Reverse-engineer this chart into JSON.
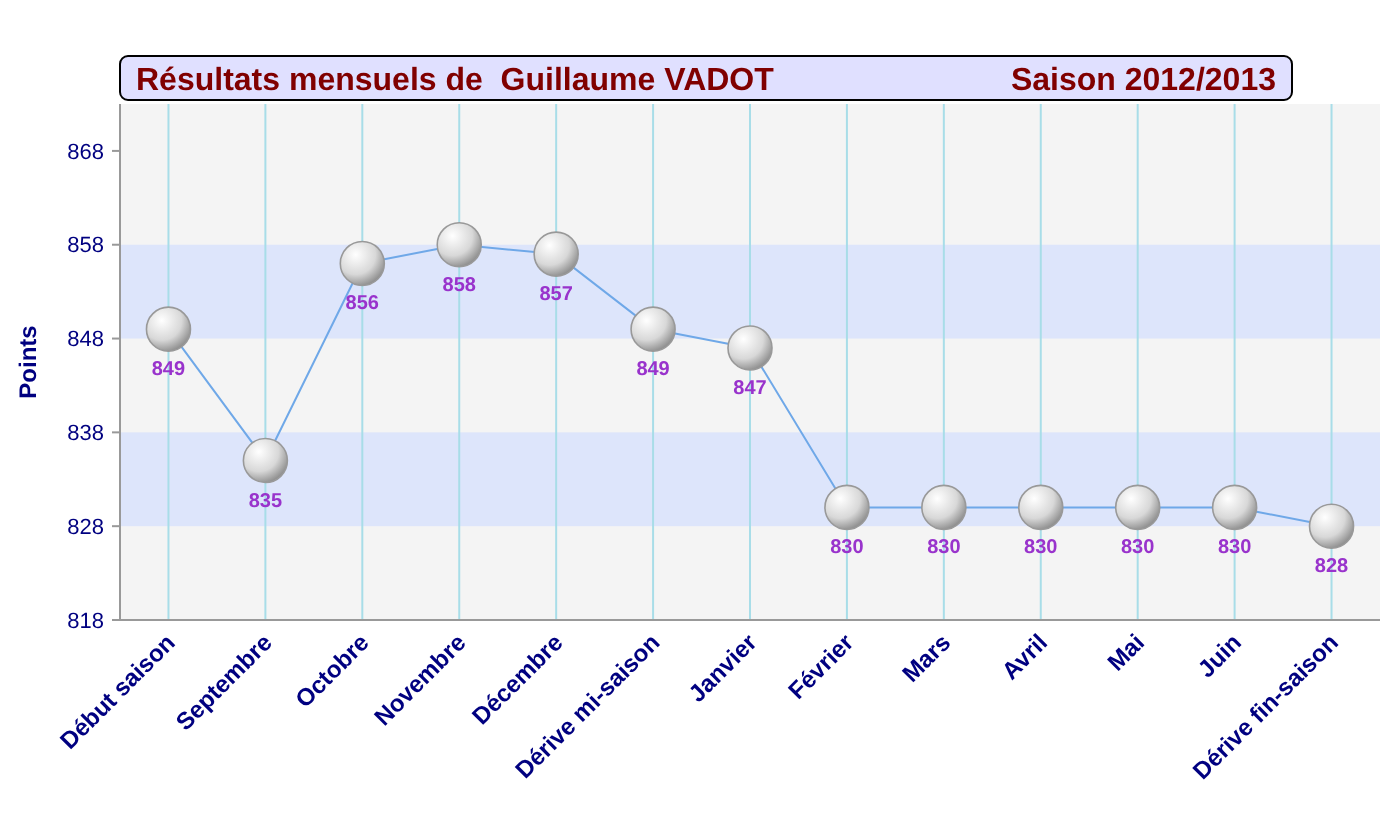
{
  "chart_data": {
    "type": "line",
    "title": "Résultats mensuels de  Guillaume VADOT",
    "subtitle": "Saison 2012/2013",
    "ylabel": "Points",
    "categories": [
      "Début saison",
      "Septembre",
      "Octobre",
      "Novembre",
      "Décembre",
      "Dérive mi-saison",
      "Janvier",
      "Février",
      "Mars",
      "Avril",
      "Mai",
      "Juin",
      "Dérive fin-saison"
    ],
    "series": [
      {
        "color": "#6fa8e8",
        "values": [
          849,
          835,
          856,
          858,
          857,
          849,
          847,
          830,
          830,
          830,
          830,
          830,
          828
        ],
        "value_labels": [
          "849",
          "835",
          "856",
          "858",
          "857",
          "849",
          "847",
          "830",
          "830",
          "830",
          "830",
          "830",
          "828"
        ]
      }
    ],
    "ylim": [
      818,
      873
    ],
    "yticks": [
      818,
      828,
      838,
      848,
      858,
      868
    ],
    "bands": [
      {
        "axis": "y",
        "from": 828,
        "to": 838,
        "color": "#dde5fb"
      },
      {
        "axis": "y",
        "from": 848,
        "to": 858,
        "color": "#dde5fb"
      }
    ],
    "grid": "x",
    "marker": "circle",
    "line_style": "solid"
  }
}
